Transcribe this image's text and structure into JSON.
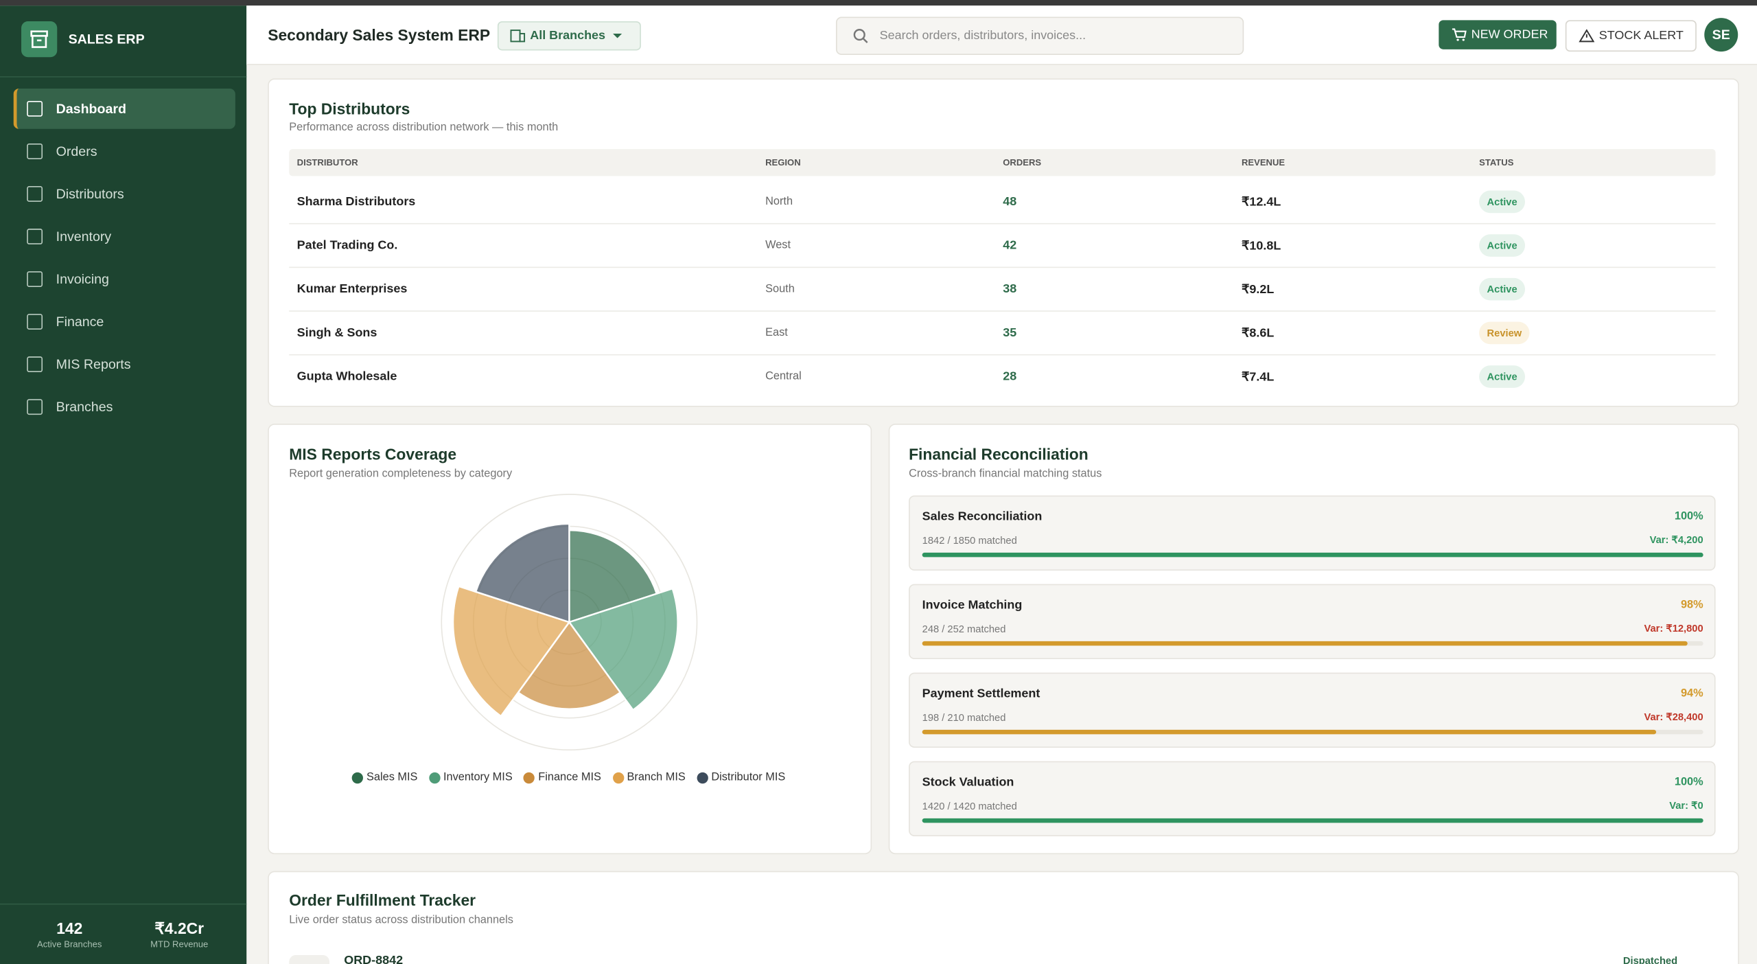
{
  "brand": "SALES ERP",
  "nav": [
    "Dashboard",
    "Orders",
    "Distributors",
    "Inventory",
    "Invoicing",
    "Finance",
    "MIS Reports",
    "Branches"
  ],
  "sidebar_stats": [
    {
      "value": "142",
      "label": "Active Branches"
    },
    {
      "value": "₹4.2Cr",
      "label": "MTD Revenue"
    }
  ],
  "header": {
    "title": "Secondary Sales System ERP",
    "branch": "All Branches",
    "search": "Search orders, distributors, invoices...",
    "new_order": "NEW ORDER",
    "stock_alert": "STOCK ALERT",
    "avatar": "SE"
  },
  "distributors": {
    "title": "Top Distributors",
    "subtitle": "Performance across distribution network — this month",
    "columns": [
      "DISTRIBUTOR",
      "REGION",
      "ORDERS",
      "REVENUE",
      "STATUS"
    ],
    "rows": [
      [
        "Sharma Distributors",
        "North",
        "48",
        "₹12.4L",
        "Active"
      ],
      [
        "Patel Trading Co.",
        "West",
        "42",
        "₹10.8L",
        "Active"
      ],
      [
        "Kumar Enterprises",
        "South",
        "38",
        "₹9.2L",
        "Active"
      ],
      [
        "Singh & Sons",
        "East",
        "35",
        "₹8.6L",
        "Review"
      ],
      [
        "Gupta Wholesale",
        "Central",
        "28",
        "₹7.4L",
        "Active"
      ]
    ]
  },
  "mis": {
    "title": "MIS Reports Coverage",
    "subtitle": "Report generation completeness by category",
    "chart_data": {
      "type": "polarArea",
      "categories": [
        "Sales MIS",
        "Inventory MIS",
        "Finance MIS",
        "Branch MIS",
        "Distributor MIS"
      ],
      "values": [
        72,
        85,
        68,
        91,
        77
      ],
      "colors": [
        "#2e6b4a",
        "#4f9c78",
        "#c98a3a",
        "#e0a14a",
        "#3d4c5c"
      ],
      "rlim": [
        0,
        100
      ],
      "rticks": [
        25,
        50,
        75,
        100
      ],
      "grid": true
    }
  },
  "reconciliation": {
    "title": "Financial Reconciliation",
    "subtitle": "Cross-branch financial matching status",
    "items": [
      {
        "name": "Sales Reconciliation",
        "matched": "1842 / 1850 matched",
        "percent": 100,
        "percent_label": "100%",
        "variance": "Var: ₹4,200",
        "color": "#2f9460",
        "var_color": "#2f9460"
      },
      {
        "name": "Invoice Matching",
        "matched": "248 / 252 matched",
        "percent": 98,
        "percent_label": "98%",
        "variance": "Var: ₹12,800",
        "color": "#d39a2c",
        "var_color": "#c0392b"
      },
      {
        "name": "Payment Settlement",
        "matched": "198 / 210 matched",
        "percent": 94,
        "percent_label": "94%",
        "variance": "Var: ₹28,400",
        "color": "#d39a2c",
        "var_color": "#c0392b"
      },
      {
        "name": "Stock Valuation",
        "matched": "1420 / 1420 matched",
        "percent": 100,
        "percent_label": "100%",
        "variance": "Var: ₹0",
        "color": "#2f9460",
        "var_color": "#2f9460"
      }
    ]
  },
  "fulfillment": {
    "title": "Order Fulfillment Tracker",
    "subtitle": "Live order status across distribution channels",
    "orders": [
      {
        "id": "ORD-8842",
        "status": "Dispatched"
      }
    ]
  }
}
